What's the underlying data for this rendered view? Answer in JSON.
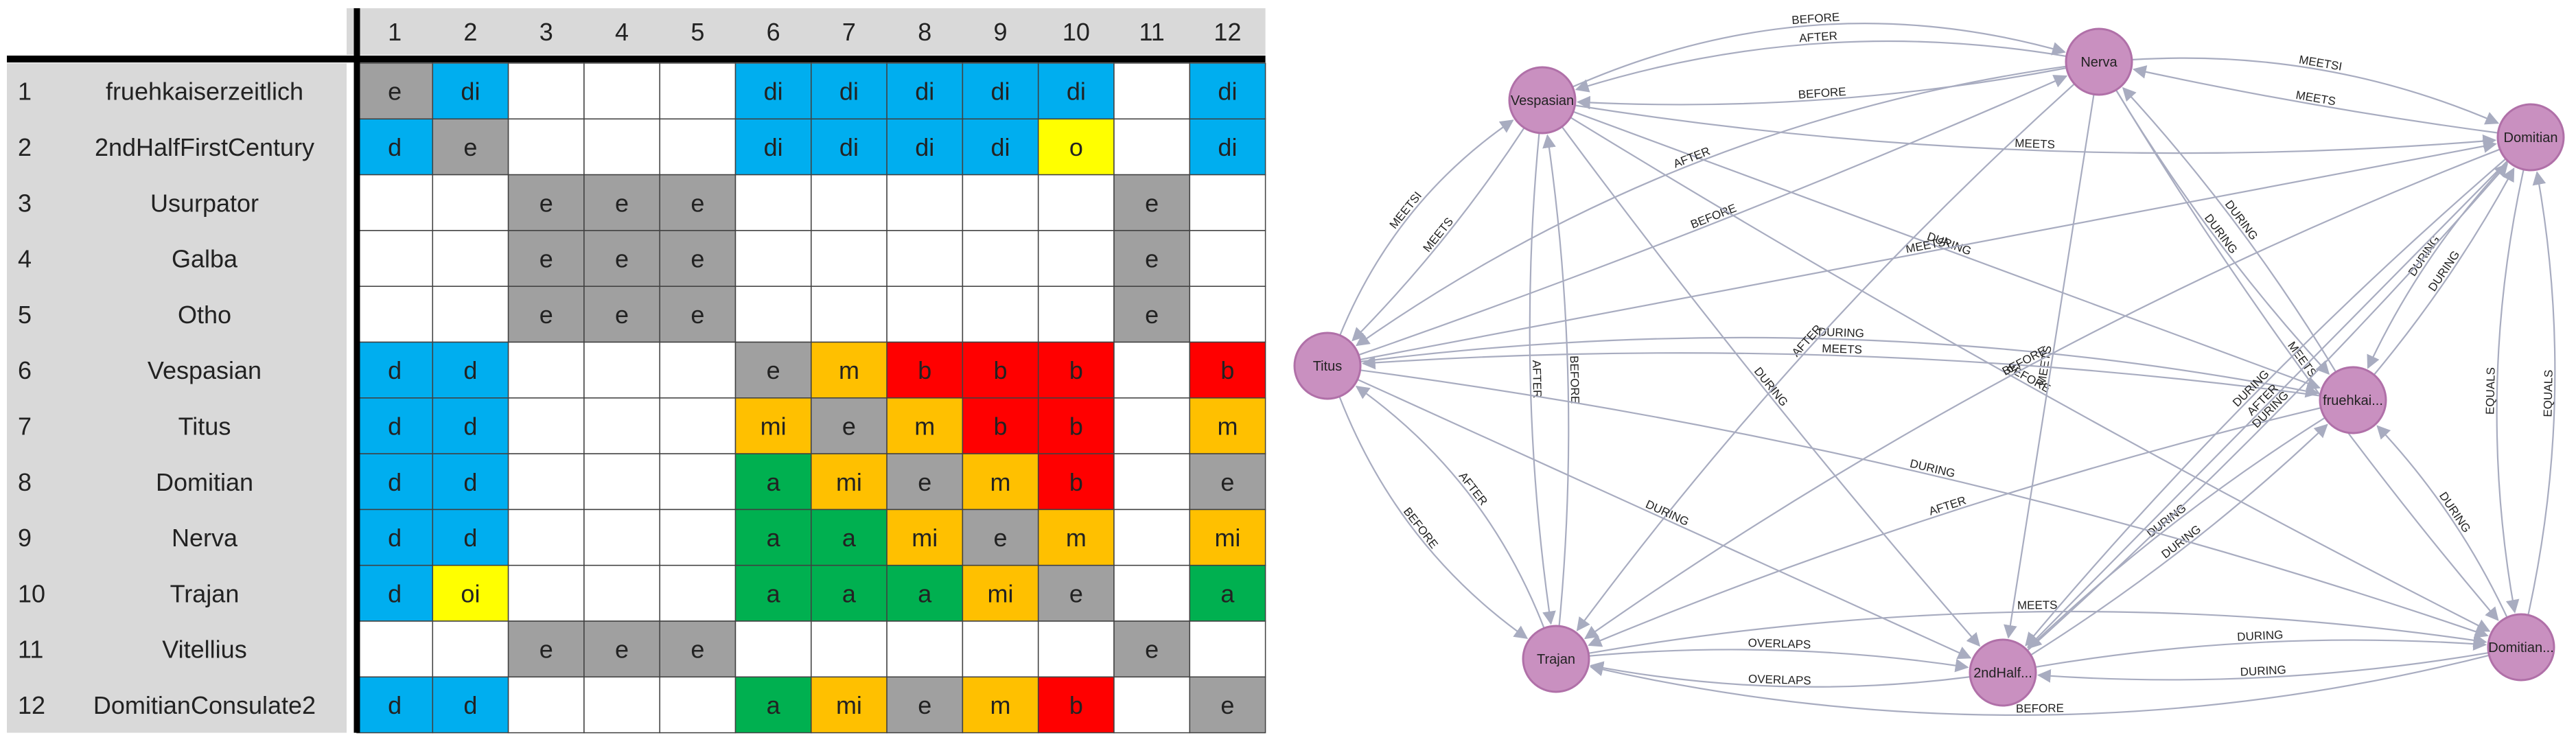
{
  "matrix": {
    "column_headers": [
      "1",
      "2",
      "3",
      "4",
      "5",
      "6",
      "7",
      "8",
      "9",
      "10",
      "11",
      "12"
    ],
    "rows": [
      {
        "index": "1",
        "label": "fruehkaiserzeitlich",
        "cells": [
          "e",
          "di",
          "",
          "",
          "",
          "di",
          "di",
          "di",
          "di",
          "di",
          "",
          "di"
        ]
      },
      {
        "index": "2",
        "label": "2ndHalfFirstCentury",
        "cells": [
          "d",
          "e",
          "",
          "",
          "",
          "di",
          "di",
          "di",
          "di",
          "o",
          "",
          "di"
        ]
      },
      {
        "index": "3",
        "label": "Usurpator",
        "cells": [
          "",
          "",
          "e",
          "e",
          "e",
          "",
          "",
          "",
          "",
          "",
          "e",
          ""
        ]
      },
      {
        "index": "4",
        "label": "Galba",
        "cells": [
          "",
          "",
          "e",
          "e",
          "e",
          "",
          "",
          "",
          "",
          "",
          "e",
          ""
        ]
      },
      {
        "index": "5",
        "label": "Otho",
        "cells": [
          "",
          "",
          "e",
          "e",
          "e",
          "",
          "",
          "",
          "",
          "",
          "e",
          ""
        ]
      },
      {
        "index": "6",
        "label": "Vespasian",
        "cells": [
          "d",
          "d",
          "",
          "",
          "",
          "e",
          "m",
          "b",
          "b",
          "b",
          "",
          "b"
        ]
      },
      {
        "index": "7",
        "label": "Titus",
        "cells": [
          "d",
          "d",
          "",
          "",
          "",
          "mi",
          "e",
          "m",
          "b",
          "b",
          "",
          "m"
        ]
      },
      {
        "index": "8",
        "label": "Domitian",
        "cells": [
          "d",
          "d",
          "",
          "",
          "",
          "a",
          "mi",
          "e",
          "m",
          "b",
          "",
          "e"
        ]
      },
      {
        "index": "9",
        "label": "Nerva",
        "cells": [
          "d",
          "d",
          "",
          "",
          "",
          "a",
          "a",
          "mi",
          "e",
          "m",
          "",
          "mi"
        ]
      },
      {
        "index": "10",
        "label": "Trajan",
        "cells": [
          "d",
          "oi",
          "",
          "",
          "",
          "a",
          "a",
          "a",
          "mi",
          "e",
          "",
          "a"
        ]
      },
      {
        "index": "11",
        "label": "Vitellius",
        "cells": [
          "",
          "",
          "e",
          "e",
          "e",
          "",
          "",
          "",
          "",
          "",
          "e",
          ""
        ]
      },
      {
        "index": "12",
        "label": "DomitianConsulate2",
        "cells": [
          "d",
          "d",
          "",
          "",
          "",
          "a",
          "mi",
          "e",
          "m",
          "b",
          "",
          "e"
        ]
      }
    ],
    "relation_colors": {
      "e": "#a0a0a0",
      "d": "#00aeef",
      "di": "#00aeef",
      "o": "#ffff00",
      "oi": "#ffff00",
      "m": "#ffc000",
      "mi": "#ffc000",
      "b": "#ff0000",
      "a": "#00b050"
    },
    "header_bg": "#d9d9d9",
    "grid_line": "#404040"
  },
  "graph": {
    "node_color": "#c990c0",
    "node_stroke": "#b070a8",
    "edge_color": "#a8acc0",
    "nodes": [
      {
        "id": "nerva",
        "label": "Nerva"
      },
      {
        "id": "vespasian",
        "label": "Vespasian"
      },
      {
        "id": "domitian",
        "label": "Domitian"
      },
      {
        "id": "titus",
        "label": "Titus"
      },
      {
        "id": "fruehkai",
        "label": "fruehkai..."
      },
      {
        "id": "trajan",
        "label": "Trajan"
      },
      {
        "id": "secondhalf",
        "label": "2ndHalf..."
      },
      {
        "id": "domcons",
        "label": "Domitian..."
      }
    ],
    "edges": [
      {
        "from": "vespasian",
        "to": "nerva",
        "label": "BEFORE",
        "curve": -0.18
      },
      {
        "from": "nerva",
        "to": "vespasian",
        "label": "BEFORE",
        "curve": -0.06
      },
      {
        "from": "nerva",
        "to": "vespasian",
        "label": "AFTER",
        "curve": 0.12
      },
      {
        "from": "nerva",
        "to": "domitian",
        "label": "MEETSI",
        "curve": -0.12
      },
      {
        "from": "domitian",
        "to": "nerva",
        "label": "MEETS",
        "curve": -0.02
      },
      {
        "from": "vespasian",
        "to": "domitian",
        "label": "MEETS",
        "curve": 0.06
      },
      {
        "from": "titus",
        "to": "vespasian",
        "label": "MEETSI",
        "curve": -0.15
      },
      {
        "from": "vespasian",
        "to": "titus",
        "label": "MEETS",
        "curve": -0.05
      },
      {
        "from": "titus",
        "to": "nerva",
        "label": "BEFORE",
        "curve": 0.02
      },
      {
        "from": "vespasian",
        "to": "fruehkai",
        "label": "DURING",
        "curve": 0.0
      },
      {
        "from": "nerva",
        "to": "titus",
        "label": "AFTER",
        "curve": 0.12
      },
      {
        "from": "nerva",
        "to": "fruehkai",
        "label": "DURING",
        "curve": 0.05
      },
      {
        "from": "fruehkai",
        "to": "nerva",
        "label": "DURING",
        "curve": 0.05
      },
      {
        "from": "domitian",
        "to": "fruehkai",
        "label": "DURING",
        "curve": 0.08
      },
      {
        "from": "fruehkai",
        "to": "domitian",
        "label": "DURING",
        "curve": 0.05
      },
      {
        "from": "titus",
        "to": "fruehkai",
        "label": "DURING",
        "curve": -0.08
      },
      {
        "from": "titus",
        "to": "domitian",
        "label": "MEETSI",
        "curve": 0.0
      },
      {
        "from": "vespasian",
        "to": "domcons",
        "label": "BEFORE",
        "curve": 0.02
      },
      {
        "from": "nerva",
        "to": "secondhalf",
        "label": "MEETS",
        "curve": 0.0
      },
      {
        "from": "nerva",
        "to": "domcons",
        "label": "MEETS",
        "curve": 0.04
      },
      {
        "from": "vespasian",
        "to": "trajan",
        "label": "AFTER",
        "curve": 0.06
      },
      {
        "from": "trajan",
        "to": "vespasian",
        "label": "BEFORE",
        "curve": 0.06
      },
      {
        "from": "vespasian",
        "to": "secondhalf",
        "label": "DURING",
        "curve": 0.02
      },
      {
        "from": "nerva",
        "to": "trajan",
        "label": "AFTER",
        "curve": 0.05
      },
      {
        "from": "fruehkai",
        "to": "titus",
        "label": "MEETS",
        "curve": 0.05
      },
      {
        "from": "titus",
        "to": "secondhalf",
        "label": "DURING",
        "curve": 0.0
      },
      {
        "from": "fruehkai",
        "to": "trajan",
        "label": "AFTER",
        "curve": 0.04
      },
      {
        "from": "domitian",
        "to": "trajan",
        "label": "BEFORE",
        "curve": 0.06
      },
      {
        "from": "titus",
        "to": "trajan",
        "label": "BEFORE",
        "curve": 0.15
      },
      {
        "from": "trajan",
        "to": "titus",
        "label": "AFTER",
        "curve": 0.15
      },
      {
        "from": "domitian",
        "to": "domcons",
        "label": "EQUALS",
        "curve": 0.1
      },
      {
        "from": "domcons",
        "to": "domitian",
        "label": "EQUALS",
        "curve": 0.1
      },
      {
        "from": "domcons",
        "to": "fruehkai",
        "label": "DURING",
        "curve": 0.08
      },
      {
        "from": "fruehkai",
        "to": "secondhalf",
        "label": "DURING",
        "curve": 0.05
      },
      {
        "from": "secondhalf",
        "to": "fruehkai",
        "label": "DURING",
        "curve": 0.05
      },
      {
        "from": "titus",
        "to": "domcons",
        "label": "DURING",
        "curve": -0.05
      },
      {
        "from": "domitian",
        "to": "secondhalf",
        "label": "DURING",
        "curve": 0.04
      },
      {
        "from": "trajan",
        "to": "secondhalf",
        "label": "OVERLAPS",
        "curve": -0.06
      },
      {
        "from": "secondhalf",
        "to": "trajan",
        "label": "OVERLAPS",
        "curve": -0.08
      },
      {
        "from": "trajan",
        "to": "domcons",
        "label": "MEETS",
        "curve": -0.08
      },
      {
        "from": "domcons",
        "to": "trajan",
        "label": "BEFORE",
        "curve": -0.12
      },
      {
        "from": "secondhalf",
        "to": "domcons",
        "label": "DURING",
        "curve": -0.06
      },
      {
        "from": "domcons",
        "to": "secondhalf",
        "label": "DURING",
        "curve": -0.06
      },
      {
        "from": "secondhalf",
        "to": "domitian",
        "label": "DURING",
        "curve": 0.03
      },
      {
        "from": "domitian",
        "to": "secondhalf",
        "label": "AFTER",
        "curve": 0.0
      }
    ]
  }
}
